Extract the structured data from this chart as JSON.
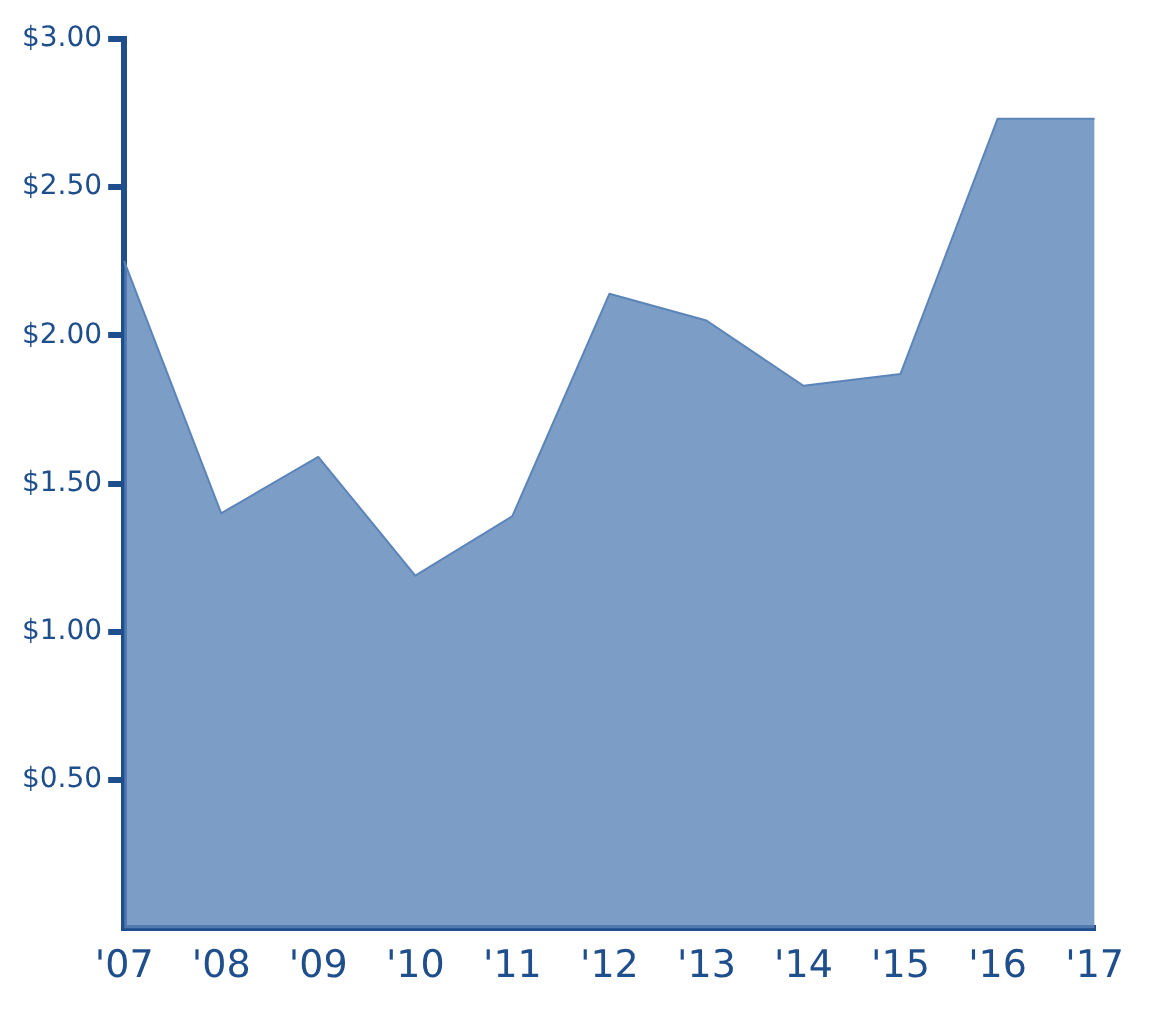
{
  "chart_data": {
    "type": "area",
    "categories": [
      "'07",
      "'08",
      "'09",
      "'10",
      "'11",
      "'12",
      "'13",
      "'14",
      "'15",
      "'16",
      "'17"
    ],
    "series": [
      {
        "color": "#5b85b8",
        "values": [
          2.25,
          1.4,
          1.59,
          1.19,
          1.39,
          2.14,
          2.05,
          1.83,
          1.87,
          2.73,
          2.73
        ]
      }
    ],
    "ylim": [
      0,
      3
    ],
    "yticks": [
      {
        "value": 0.5,
        "label": "$0.50"
      },
      {
        "value": 1,
        "label": "$1.00"
      },
      {
        "value": 1.5,
        "label": "$1.50"
      },
      {
        "value": 2,
        "label": "$2.00"
      },
      {
        "value": 2.5,
        "label": "$2.50"
      },
      {
        "value": 3,
        "label": "$3.00"
      }
    ],
    "grid": false,
    "legend": false
  }
}
